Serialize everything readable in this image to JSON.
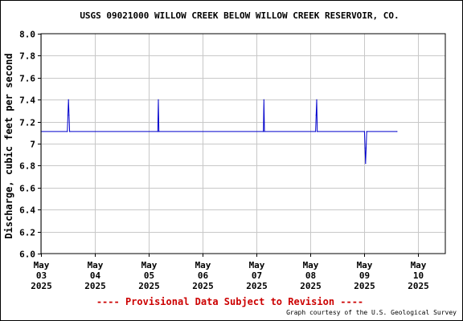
{
  "title": "USGS 09021000 WILLOW CREEK BELOW WILLOW CREEK RESERVOIR, CO.",
  "provisional_note": "---- Provisional Data Subject to Revision ----",
  "credit": "Graph courtesy of the U.S. Geological Survey",
  "colors": {
    "series": "#0000cc",
    "provisional": "#cc0000",
    "grid": "#c8c8c8",
    "axis": "#000000"
  },
  "chart_data": {
    "type": "line",
    "title": "USGS 09021000 WILLOW CREEK BELOW WILLOW CREEK RESERVOIR, CO.",
    "xlabel": "",
    "ylabel": "Discharge, cubic feet per second",
    "xlim": [
      "2025-05-03",
      "2025-05-10"
    ],
    "ylim": [
      6.0,
      8.0
    ],
    "grid": true,
    "legend": "none",
    "y_ticks": [
      "6.0",
      "6.2",
      "6.4",
      "6.6",
      "6.8",
      "7",
      "7.2",
      "7.4",
      "7.6",
      "7.8",
      "8.0"
    ],
    "x_ticks": [
      {
        "month": "May",
        "day": "03",
        "year": "2025"
      },
      {
        "month": "May",
        "day": "04",
        "year": "2025"
      },
      {
        "month": "May",
        "day": "05",
        "year": "2025"
      },
      {
        "month": "May",
        "day": "06",
        "year": "2025"
      },
      {
        "month": "May",
        "day": "07",
        "year": "2025"
      },
      {
        "month": "May",
        "day": "08",
        "year": "2025"
      },
      {
        "month": "May",
        "day": "09",
        "year": "2025"
      },
      {
        "month": "May",
        "day": "10",
        "year": "2025"
      }
    ],
    "series": [
      {
        "baseline": 7.11,
        "x": [
          "2025-05-03 00:00",
          "2025-05-03 11:45",
          "2025-05-03 12:00",
          "2025-05-03 12:15",
          "2025-05-03 12:30",
          "2025-05-03 12:45",
          "2025-05-05 04:00",
          "2025-05-05 04:15",
          "2025-05-05 04:30",
          "2025-05-07 03:00",
          "2025-05-07 03:15",
          "2025-05-07 03:30",
          "2025-05-08 02:15",
          "2025-05-08 02:30",
          "2025-05-08 02:45",
          "2025-05-08 03:00",
          "2025-05-09 00:00",
          "2025-05-09 00:15",
          "2025-05-09 00:30",
          "2025-05-09 00:45",
          "2025-05-09 01:00",
          "2025-05-09 14:30"
        ],
        "y": [
          7.11,
          7.11,
          7.26,
          7.4,
          7.26,
          7.11,
          7.11,
          7.4,
          7.11,
          7.11,
          7.4,
          7.11,
          7.11,
          7.26,
          7.4,
          7.11,
          7.11,
          6.96,
          6.82,
          6.96,
          7.11,
          7.11
        ]
      }
    ]
  }
}
